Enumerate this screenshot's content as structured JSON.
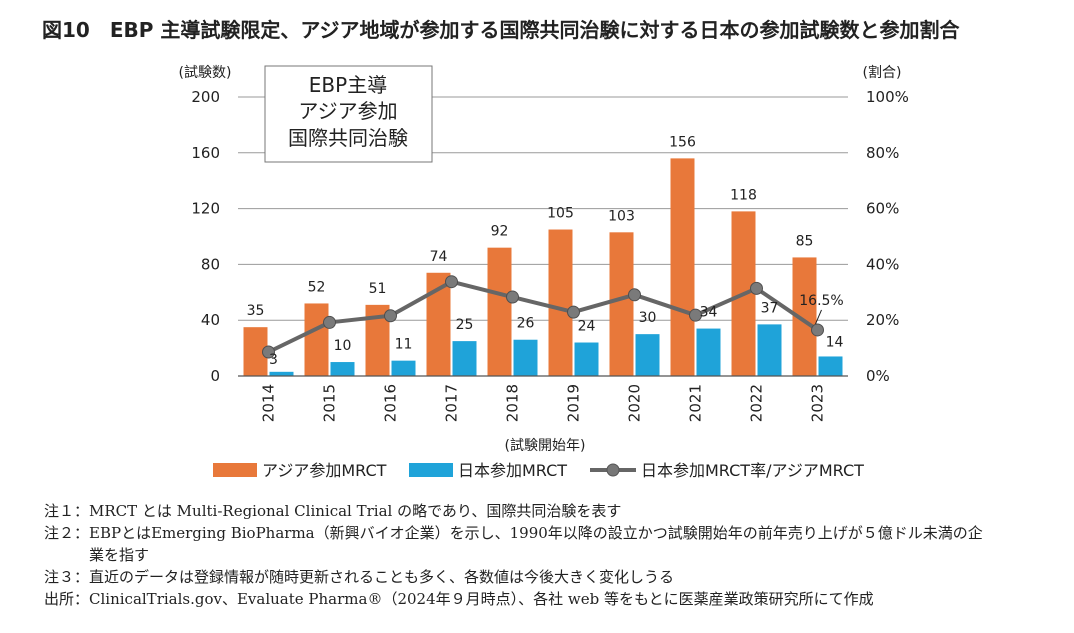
{
  "figure": {
    "title": "図10　EBP 主導試験限定、アジア地域が参加する国際共同治験に対する日本の参加試験数と参加割合",
    "box_lines": [
      "EBP主導",
      "アジア参加",
      "国際共同治験"
    ]
  },
  "chart_data": {
    "type": "bar",
    "categories": [
      "2014",
      "2015",
      "2016",
      "2017",
      "2018",
      "2019",
      "2020",
      "2021",
      "2022",
      "2023"
    ],
    "xlabel": "(試験開始年)",
    "ylabel_left": "(試験数)",
    "ylabel_right": "(割合)",
    "ylim_left": [
      0,
      200
    ],
    "ylim_right": [
      0,
      100
    ],
    "yticks_left": [
      "0",
      "40",
      "80",
      "120",
      "160",
      "200"
    ],
    "yticks_right": [
      "0%",
      "20%",
      "40%",
      "60%",
      "80%",
      "100%"
    ],
    "grid": true,
    "legend_position": "bottom",
    "series": [
      {
        "name": "アジア参加MRCT",
        "type": "bar",
        "axis": "left",
        "values": [
          35,
          52,
          51,
          74,
          92,
          105,
          103,
          156,
          118,
          85
        ],
        "labels": [
          "35",
          "52",
          "51",
          "74",
          "92",
          "105",
          "103",
          "156",
          "118",
          "85"
        ]
      },
      {
        "name": "日本参加MRCT",
        "type": "bar",
        "axis": "left",
        "values": [
          3,
          10,
          11,
          25,
          26,
          24,
          30,
          34,
          37,
          14
        ],
        "labels": [
          "3",
          "10",
          "11",
          "25",
          "26",
          "24",
          "30",
          "34",
          "37",
          "14"
        ]
      },
      {
        "name": "日本参加MRCT率/アジアMRCT",
        "type": "line",
        "axis": "right",
        "values": [
          8.6,
          19.2,
          21.6,
          33.8,
          28.3,
          22.9,
          29.1,
          21.8,
          31.4,
          16.5
        ]
      }
    ],
    "annotations": [
      {
        "text": "16.5%",
        "category": "2023"
      }
    ],
    "colors": {
      "asia": "#e8783a",
      "japan": "#1fa3d9",
      "rate": "#666666",
      "grid": "#9a9a9a"
    }
  },
  "notes": [
    {
      "label": "注１：",
      "text": "MRCT とは Multi-Regional Clinical Trial の略であり、国際共同治験を表す"
    },
    {
      "label": "注２：",
      "text": "EBPとはEmerging BioPharma（新興バイオ企業）を示し、1990年以降の設立かつ試験開始年の前年売り上げが５億ドル未満の企業を指す"
    },
    {
      "label": "注３：",
      "text": "直近のデータは登録情報が随時更新されることも多く、各数値は今後大きく変化しうる"
    },
    {
      "label": "出所：",
      "text": "ClinicalTrials.gov、Evaluate Pharma®（2024年９月時点）、各社 web 等をもとに医薬産業政策研究所にて作成"
    }
  ]
}
